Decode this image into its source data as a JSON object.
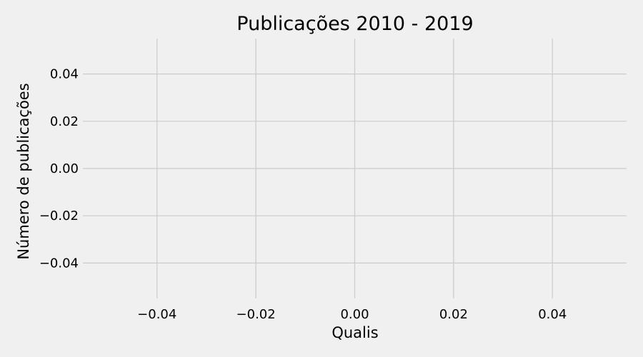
{
  "chart_data": {
    "type": "bar",
    "title": "Publicações 2010 - 2019",
    "xlabel": "Qualis",
    "ylabel": "Número de publicações",
    "categories": [],
    "values": [],
    "xlim": [
      -0.055,
      0.055
    ],
    "ylim": [
      -0.055,
      0.055
    ],
    "x_ticks": [
      {
        "value": -0.04,
        "label": "−0.04"
      },
      {
        "value": -0.02,
        "label": "−0.02"
      },
      {
        "value": 0.0,
        "label": "0.00"
      },
      {
        "value": 0.02,
        "label": "0.02"
      },
      {
        "value": 0.04,
        "label": "0.04"
      }
    ],
    "y_ticks": [
      {
        "value": 0.04,
        "label": "0.04"
      },
      {
        "value": 0.02,
        "label": "0.02"
      },
      {
        "value": 0.0,
        "label": "0.00"
      },
      {
        "value": -0.02,
        "label": "−0.02"
      },
      {
        "value": -0.04,
        "label": "−0.04"
      }
    ],
    "grid": true,
    "style": "fivethirtyeight",
    "background_color": "#f0f0f0",
    "grid_color": "#cbcbcb"
  }
}
